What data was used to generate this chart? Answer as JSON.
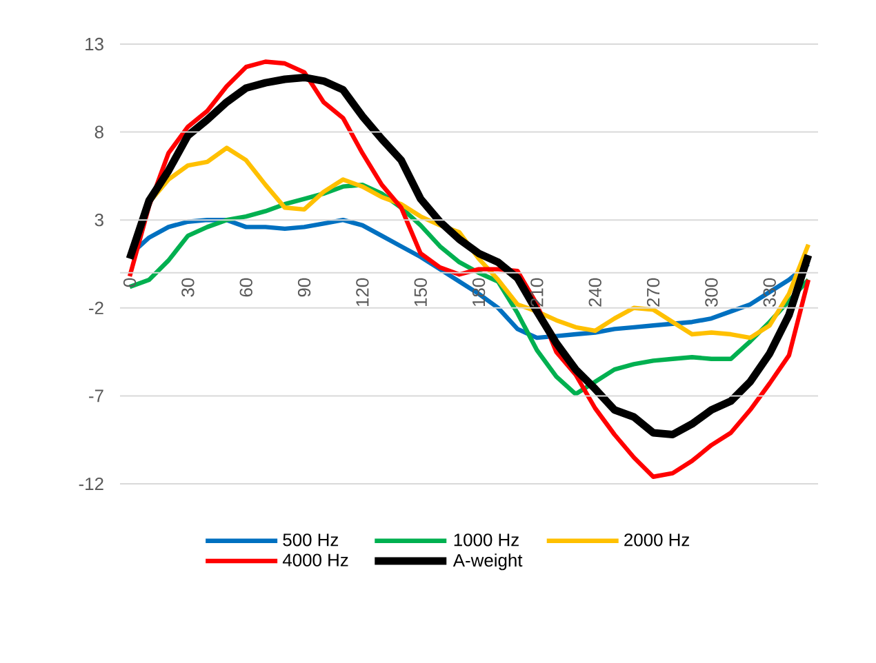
{
  "chart_data": {
    "type": "line",
    "categories": [
      "0",
      null,
      null,
      "30",
      null,
      null,
      "60",
      null,
      null,
      "90",
      null,
      null,
      "120",
      null,
      null,
      "150",
      null,
      null,
      "180",
      null,
      null,
      "210",
      null,
      null,
      "240",
      null,
      null,
      "270",
      null,
      null,
      "300",
      null,
      null,
      "330",
      null,
      null
    ],
    "series": [
      {
        "name": "500 Hz",
        "color": "#0070c0",
        "values": [
          1.0,
          2.0,
          2.6,
          2.9,
          3.0,
          3.0,
          2.6,
          2.6,
          2.5,
          2.6,
          2.8,
          3.0,
          2.7,
          2.1,
          1.5,
          0.9,
          0.2,
          -0.5,
          -1.2,
          -2.0,
          -3.2,
          -3.7,
          -3.6,
          -3.5,
          -3.4,
          -3.2,
          -3.1,
          -3.0,
          -2.9,
          -2.8,
          -2.6,
          -2.2,
          -1.8,
          -1.1,
          -0.4,
          0.5
        ]
      },
      {
        "name": "1000 Hz",
        "color": "#00b050",
        "values": [
          -0.8,
          -0.4,
          0.7,
          2.1,
          2.6,
          3.0,
          3.2,
          3.5,
          3.9,
          4.2,
          4.5,
          4.9,
          5.0,
          4.5,
          3.7,
          2.7,
          1.5,
          0.6,
          0.0,
          -0.5,
          -2.3,
          -4.4,
          -5.9,
          -6.9,
          -6.2,
          -5.5,
          -5.2,
          -5.0,
          -4.9,
          -4.8,
          -4.9,
          -4.9,
          -3.9,
          -2.8,
          -1.6,
          -0.4
        ]
      },
      {
        "name": "2000 Hz",
        "color": "#ffc000",
        "values": [
          1.0,
          4.0,
          5.3,
          6.1,
          6.3,
          7.1,
          6.4,
          5.0,
          3.7,
          3.6,
          4.6,
          5.3,
          4.9,
          4.3,
          3.9,
          3.2,
          2.7,
          2.3,
          0.8,
          -0.4,
          -1.8,
          -2.2,
          -2.7,
          -3.1,
          -3.3,
          -2.6,
          -2.0,
          -2.1,
          -2.8,
          -3.5,
          -3.4,
          -3.5,
          -3.7,
          -3.0,
          -1.2,
          1.6
        ]
      },
      {
        "name": "4000 Hz",
        "color": "#ff0000",
        "values": [
          -0.2,
          3.8,
          6.8,
          8.3,
          9.2,
          10.6,
          11.7,
          12.0,
          11.9,
          11.4,
          9.7,
          8.8,
          6.8,
          5.0,
          3.7,
          1.1,
          0.3,
          -0.1,
          0.2,
          0.2,
          0.1,
          -1.8,
          -4.5,
          -5.8,
          -7.7,
          -9.2,
          -10.5,
          -11.6,
          -11.4,
          -10.7,
          -9.8,
          -9.1,
          -7.8,
          -6.3,
          -4.7,
          -0.4
        ]
      },
      {
        "name": "A-weight",
        "color": "#000000",
        "values": [
          0.8,
          4.1,
          5.8,
          7.8,
          8.7,
          9.7,
          10.5,
          10.8,
          11.0,
          11.1,
          10.9,
          10.4,
          8.9,
          7.6,
          6.4,
          4.2,
          2.9,
          1.9,
          1.1,
          0.6,
          -0.3,
          -2.2,
          -4.0,
          -5.5,
          -6.6,
          -7.8,
          -8.2,
          -9.1,
          -9.2,
          -8.6,
          -7.8,
          -7.3,
          -6.2,
          -4.6,
          -2.4,
          1.0
        ]
      }
    ],
    "ylim": [
      -12,
      13
    ],
    "yticks": [
      -12,
      -7,
      -2,
      3,
      8,
      13
    ],
    "grid": "y",
    "legend": "bottom",
    "marker": "none",
    "line_style": "solid"
  }
}
